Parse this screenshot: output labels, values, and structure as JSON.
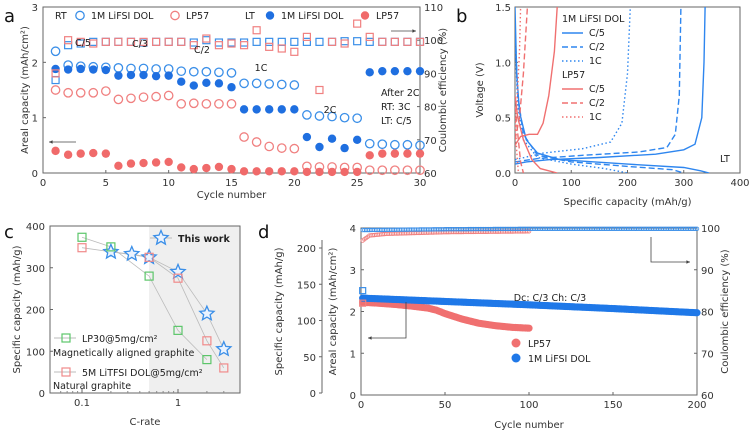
{
  "chart_data": [
    {
      "panel": "a",
      "type": "scatter",
      "xlabel": "Cycle number",
      "ylabel": "Areal capacity (mAh/cm2)",
      "y2label": "Coulombic efficiency (%)",
      "xlim": [
        0,
        30
      ],
      "ylim": [
        0,
        3
      ],
      "y2lim": [
        60,
        110
      ],
      "xticks": [
        0,
        5,
        10,
        15,
        20,
        25,
        30
      ],
      "yticks": [
        0,
        1,
        2,
        3
      ],
      "y2ticks": [
        60,
        70,
        80,
        90,
        100,
        110
      ],
      "legend": {
        "groups": [
          {
            "label": "RT",
            "entries": [
              {
                "name": "1M LiFSI DOL",
                "marker": "open-circle",
                "color": "#3b8fe8"
              },
              {
                "name": "LP57",
                "marker": "open-circle",
                "color": "#f08080"
              }
            ]
          },
          {
            "label": "LT",
            "entries": [
              {
                "name": "1M LiFSI DOL",
                "marker": "filled-circle",
                "color": "#1f6fe0"
              },
              {
                "name": "LP57",
                "marker": "filled-circle",
                "color": "#f06a6a"
              }
            ]
          }
        ],
        "position": "top"
      },
      "annotations": [
        "C/5",
        "C/3",
        "C/2",
        "1C",
        "2C",
        "After 2C",
        "RT: 3C",
        "LT: C/5"
      ],
      "x": [
        1,
        2,
        3,
        4,
        5,
        6,
        7,
        8,
        9,
        10,
        11,
        12,
        13,
        14,
        15,
        16,
        17,
        18,
        19,
        20,
        21,
        22,
        23,
        24,
        25,
        26,
        27,
        28,
        29,
        30
      ],
      "series": [
        {
          "name": "RT 1M LiFSI DOL capacity",
          "axis": "left",
          "marker": "open-circle",
          "color": "#3b8fe8",
          "values": [
            2.2,
            1.95,
            1.93,
            1.92,
            1.91,
            1.9,
            1.89,
            1.89,
            1.88,
            1.88,
            1.84,
            1.83,
            1.83,
            1.82,
            1.81,
            1.62,
            1.62,
            1.61,
            1.6,
            1.59,
            1.05,
            1.03,
            1.02,
            1.0,
            0.99,
            0.53,
            0.52,
            0.51,
            0.51,
            0.5
          ]
        },
        {
          "name": "RT LP57 capacity",
          "axis": "left",
          "marker": "open-circle",
          "color": "#f08080",
          "values": [
            1.5,
            1.45,
            1.45,
            1.45,
            1.48,
            1.33,
            1.35,
            1.37,
            1.38,
            1.4,
            1.25,
            1.26,
            1.25,
            1.25,
            1.25,
            0.65,
            0.56,
            0.48,
            0.45,
            0.44,
            0.12,
            0.11,
            0.11,
            0.1,
            0.1,
            0.05,
            0.05,
            0.05,
            0.05,
            0.05
          ]
        },
        {
          "name": "LT 1M LiFSI DOL capacity",
          "axis": "left",
          "marker": "filled-circle",
          "color": "#1f6fe0",
          "values": [
            1.88,
            1.87,
            1.88,
            1.87,
            1.86,
            1.76,
            1.77,
            1.77,
            1.75,
            1.76,
            1.65,
            1.58,
            1.63,
            1.62,
            1.55,
            1.15,
            1.15,
            1.15,
            1.15,
            1.15,
            0.65,
            0.47,
            0.62,
            0.45,
            0.6,
            1.82,
            1.84,
            1.84,
            1.84,
            1.84
          ]
        },
        {
          "name": "LT LP57 capacity",
          "axis": "left",
          "marker": "filled-circle",
          "color": "#f06a6a",
          "values": [
            0.4,
            0.33,
            0.35,
            0.36,
            0.35,
            0.13,
            0.17,
            0.18,
            0.19,
            0.2,
            0.1,
            0.07,
            0.09,
            0.11,
            0.07,
            0.03,
            0.03,
            0.03,
            0.03,
            0.03,
            0.02,
            0.02,
            0.02,
            0.02,
            0.02,
            0.32,
            0.35,
            0.35,
            0.35,
            0.35
          ]
        },
        {
          "name": "RT 1M LiFSI DOL CE",
          "axis": "right",
          "marker": "open-square",
          "color": "#3b8fe8",
          "values": [
            88,
            98.5,
            99,
            99.5,
            99.5,
            99.5,
            99.5,
            99.3,
            99.5,
            99.5,
            99.5,
            99.3,
            100,
            99.3,
            99.3,
            99.3,
            99.5,
            99.5,
            99.5,
            99.5,
            99.5,
            99.5,
            99.5,
            99.7,
            99.7,
            99.5,
            99.5,
            99.5,
            99.5,
            99.5
          ]
        },
        {
          "name": "RT LP57 CE",
          "axis": "right",
          "marker": "open-square",
          "color": "#f08080",
          "values": [
            90,
            100,
            99.5,
            99,
            99.5,
            99.5,
            99.5,
            99.5,
            99.5,
            99.5,
            99.5,
            98.5,
            100.5,
            98.5,
            99,
            98.5,
            103,
            98,
            97.5,
            96.5,
            101,
            85,
            99.5,
            99,
            105,
            101,
            99.5,
            99.5,
            99.5,
            99.5
          ]
        }
      ]
    },
    {
      "panel": "b",
      "type": "line",
      "xlabel": "Specific capacity (mAh/g)",
      "ylabel": "Voltage (V)",
      "xlim": [
        0,
        400
      ],
      "ylim": [
        0,
        1.5
      ],
      "xticks": [
        0,
        100,
        200,
        300,
        400
      ],
      "yticks": [
        0.0,
        0.5,
        1.0,
        1.5
      ],
      "annotations": [
        "LT"
      ],
      "legend": {
        "groups": [
          {
            "label": "1M LiFSI DOL",
            "entries": [
              {
                "name": "C/5",
                "style": "solid",
                "color": "#2e86ef"
              },
              {
                "name": "C/2",
                "style": "dashed",
                "color": "#2e86ef"
              },
              {
                "name": "1C",
                "style": "dotted",
                "color": "#2e86ef"
              }
            ]
          },
          {
            "label": "LP57",
            "entries": [
              {
                "name": "C/5",
                "style": "solid",
                "color": "#f07070"
              },
              {
                "name": "C/2",
                "style": "dashed",
                "color": "#f07070"
              },
              {
                "name": "1C",
                "style": "dotted",
                "color": "#f07070"
              }
            ]
          }
        ],
        "position": "top-center"
      },
      "series": [
        {
          "name": "1M LiFSI DOL C/5 discharge",
          "style": "solid",
          "color": "#2e86ef",
          "points": [
            [
              0,
              1.5
            ],
            [
              3,
              0.9
            ],
            [
              8,
              0.55
            ],
            [
              20,
              0.3
            ],
            [
              40,
              0.18
            ],
            [
              80,
              0.12
            ],
            [
              200,
              0.08
            ],
            [
              300,
              0.05
            ],
            [
              330,
              0.02
            ],
            [
              345,
              0.0
            ]
          ]
        },
        {
          "name": "1M LiFSI DOL C/5 charge",
          "style": "solid",
          "color": "#2e86ef",
          "points": [
            [
              0,
              0.08
            ],
            [
              20,
              0.1
            ],
            [
              60,
              0.12
            ],
            [
              150,
              0.14
            ],
            [
              250,
              0.17
            ],
            [
              300,
              0.21
            ],
            [
              320,
              0.26
            ],
            [
              332,
              0.5
            ],
            [
              336,
              1.0
            ],
            [
              338,
              1.5
            ]
          ]
        },
        {
          "name": "1M LiFSI DOL C/2 discharge",
          "style": "dashed",
          "color": "#2e86ef",
          "points": [
            [
              0,
              1.3
            ],
            [
              5,
              0.7
            ],
            [
              15,
              0.35
            ],
            [
              40,
              0.16
            ],
            [
              100,
              0.1
            ],
            [
              200,
              0.06
            ],
            [
              280,
              0.03
            ],
            [
              300,
              0.0
            ]
          ]
        },
        {
          "name": "1M LiFSI DOL C/2 charge",
          "style": "dashed",
          "color": "#2e86ef",
          "points": [
            [
              0,
              0.1
            ],
            [
              40,
              0.13
            ],
            [
              120,
              0.16
            ],
            [
              220,
              0.19
            ],
            [
              270,
              0.23
            ],
            [
              285,
              0.35
            ],
            [
              292,
              0.7
            ],
            [
              295,
              1.5
            ]
          ]
        },
        {
          "name": "1M LiFSI DOL 1C discharge",
          "style": "dotted",
          "color": "#2e86ef",
          "points": [
            [
              0,
              1.2
            ],
            [
              5,
              0.6
            ],
            [
              15,
              0.3
            ],
            [
              40,
              0.14
            ],
            [
              100,
              0.08
            ],
            [
              160,
              0.04
            ],
            [
              200,
              0.0
            ]
          ]
        },
        {
          "name": "1M LiFSI DOL 1C charge",
          "style": "dotted",
          "color": "#2e86ef",
          "points": [
            [
              0,
              0.12
            ],
            [
              50,
              0.18
            ],
            [
              120,
              0.22
            ],
            [
              170,
              0.28
            ],
            [
              190,
              0.45
            ],
            [
              200,
              0.9
            ],
            [
              205,
              1.5
            ]
          ]
        },
        {
          "name": "LP57 C/5 discharge",
          "style": "solid",
          "color": "#f07070",
          "points": [
            [
              0,
              0.7
            ],
            [
              5,
              0.5
            ],
            [
              15,
              0.3
            ],
            [
              30,
              0.12
            ],
            [
              45,
              0.04
            ],
            [
              75,
              0.0
            ]
          ]
        },
        {
          "name": "LP57 C/5 charge",
          "style": "solid",
          "color": "#f07070",
          "points": [
            [
              0,
              0.25
            ],
            [
              10,
              0.33
            ],
            [
              25,
              0.35
            ],
            [
              40,
              0.35
            ],
            [
              50,
              0.45
            ],
            [
              60,
              0.7
            ],
            [
              70,
              1.1
            ],
            [
              75,
              1.5
            ]
          ]
        },
        {
          "name": "LP57 C/2 discharge",
          "style": "dashed",
          "color": "#f07070",
          "points": [
            [
              0,
              0.6
            ],
            [
              5,
              0.35
            ],
            [
              10,
              0.1
            ],
            [
              15,
              0.0
            ]
          ]
        },
        {
          "name": "LP57 C/2 charge",
          "style": "dashed",
          "color": "#f07070",
          "points": [
            [
              0,
              0.3
            ],
            [
              8,
              0.5
            ],
            [
              15,
              0.9
            ],
            [
              22,
              1.5
            ]
          ]
        },
        {
          "name": "LP57 1C discharge",
          "style": "dotted",
          "color": "#f07070",
          "points": [
            [
              0,
              0.5
            ],
            [
              3,
              0.2
            ],
            [
              6,
              0.0
            ]
          ]
        },
        {
          "name": "LP57 1C charge",
          "style": "dotted",
          "color": "#f07070",
          "points": [
            [
              0,
              0.35
            ],
            [
              4,
              0.7
            ],
            [
              8,
              1.1
            ],
            [
              10,
              1.5
            ]
          ]
        }
      ]
    },
    {
      "panel": "c",
      "type": "scatter",
      "xlabel": "C-rate",
      "ylabel": "Specific capacity (mAh/g)",
      "xscale": "log",
      "xlim": [
        0.05,
        4
      ],
      "ylim": [
        0,
        400
      ],
      "xticks": [
        0.1,
        1
      ],
      "yticks": [
        0,
        100,
        200,
        300,
        400
      ],
      "shaded_region_x_from": 0.5,
      "legend": {
        "entries": [
          "This work",
          "LP30@5mg/cm2",
          "5M LiTFSI DOL@5mg/cm2"
        ],
        "position": "inline"
      },
      "annotations": [
        "Magnetically aligned graphite",
        "Natural graphite"
      ],
      "series": [
        {
          "name": "This work",
          "marker": "star",
          "color": "#3b8fe8",
          "x": [
            0.2,
            0.33,
            0.5,
            1,
            2,
            3
          ],
          "values": [
            338,
            333,
            325,
            290,
            190,
            105
          ]
        },
        {
          "name": "LP30@5mg/cm2",
          "marker": "open-square",
          "color": "#5cc66a",
          "x": [
            0.1,
            0.2,
            0.5,
            1,
            2
          ],
          "values": [
            373,
            350,
            280,
            150,
            80
          ]
        },
        {
          "name": "5M LiTFSI DOL@5mg/cm2",
          "marker": "open-square",
          "color": "#f08a8a",
          "x": [
            0.1,
            0.5,
            1,
            2,
            3
          ],
          "values": [
            348,
            325,
            275,
            125,
            60
          ]
        }
      ]
    },
    {
      "panel": "d",
      "type": "scatter",
      "xlabel": "Cycle number",
      "ylabel": "Areal capacity (mAh/cm2)",
      "ylabel_outer": "Specific capacity (mAh/g)",
      "y2label": "Coulombic efficiency (%)",
      "xlim": [
        0,
        200
      ],
      "ylim": [
        0,
        4
      ],
      "youterlim": [
        0,
        220
      ],
      "y2lim": [
        60,
        100
      ],
      "xticks": [
        0,
        50,
        100,
        150,
        200
      ],
      "yticks": [
        0,
        1,
        2,
        3,
        4
      ],
      "youterticks": [
        0,
        50,
        100,
        150,
        200
      ],
      "y2ticks": [
        60,
        70,
        80,
        90,
        100
      ],
      "annotations": [
        "Dc: C/3 Ch: C/3"
      ],
      "legend": {
        "entries": [
          "LP57",
          "1M LiFSI DOL"
        ],
        "position": "lower-center"
      },
      "series": [
        {
          "name": "LP57 capacity",
          "color": "#f07070",
          "x": [
            1,
            10,
            20,
            30,
            40,
            45,
            50,
            60,
            70,
            80,
            90,
            100
          ],
          "values": [
            2.22,
            2.2,
            2.17,
            2.13,
            2.08,
            2.03,
            1.95,
            1.82,
            1.72,
            1.66,
            1.62,
            1.6
          ]
        },
        {
          "name": "1M LiFSI DOL capacity",
          "color": "#1f78e8",
          "x": [
            1,
            50,
            100,
            150,
            200
          ],
          "values": [
            2.32,
            2.24,
            2.16,
            2.07,
            1.97
          ]
        },
        {
          "name": "LP57 CE",
          "color": "#f08080",
          "x": [
            1,
            5,
            15,
            50,
            100
          ],
          "values": [
            97,
            98.2,
            98.6,
            99,
            99.2
          ]
        },
        {
          "name": "1M LiFSI DOL CE",
          "color": "#3b8fe8",
          "x": [
            1,
            50,
            100,
            150,
            200
          ],
          "values": [
            99.5,
            99.7,
            99.8,
            99.8,
            99.8
          ]
        }
      ]
    }
  ],
  "panel_labels": [
    "a",
    "b",
    "c",
    "d"
  ]
}
